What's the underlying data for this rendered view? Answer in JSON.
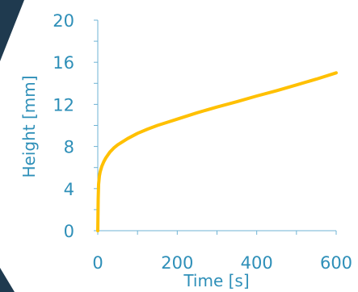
{
  "colors": {
    "text": "#2e8fb8",
    "axis": "#6fb3d4",
    "series": "#ffc000",
    "corner": "#1f3a4f"
  },
  "chart_data": {
    "type": "line",
    "title": "",
    "xlabel": "Time [s]",
    "ylabel": "Height [mm]",
    "xlim": [
      0,
      600
    ],
    "ylim": [
      0,
      20
    ],
    "xticks": [
      0,
      200,
      400,
      600
    ],
    "yticks": [
      0,
      4,
      8,
      12,
      16,
      20
    ],
    "grid": false,
    "legend": "none",
    "series": [
      {
        "x": [
          0,
          1,
          2,
          4,
          6,
          10,
          15,
          20,
          30,
          40,
          50,
          75,
          100,
          125,
          150,
          175,
          200,
          250,
          300,
          350,
          400,
          450,
          500,
          550,
          600
        ],
        "y": [
          0,
          3.0,
          4.4,
          5.2,
          5.6,
          6.1,
          6.55,
          6.9,
          7.45,
          7.85,
          8.15,
          8.75,
          9.25,
          9.65,
          10.0,
          10.3,
          10.6,
          11.2,
          11.75,
          12.25,
          12.8,
          13.3,
          13.85,
          14.4,
          15.0
        ]
      }
    ]
  }
}
